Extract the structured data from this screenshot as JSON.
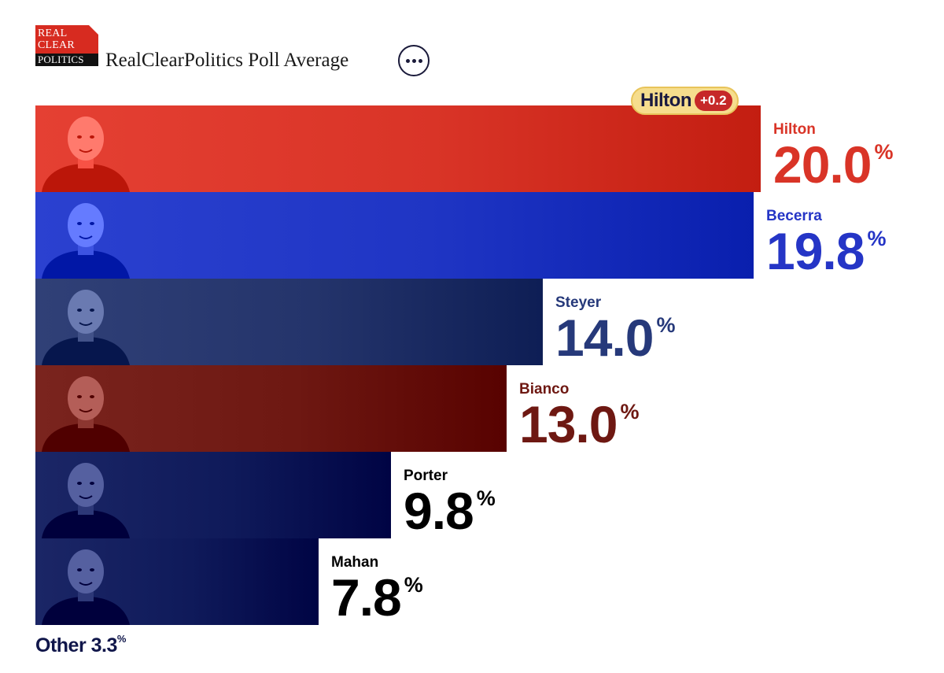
{
  "header": {
    "logo_lines": [
      "REAL",
      "CLEAR",
      "POLITICS"
    ],
    "title": "RealClearPolitics Poll Average",
    "more_icon": "more-horizontal-icon"
  },
  "leader": {
    "name": "Hilton",
    "margin": "+0.2"
  },
  "chart_data": {
    "type": "bar",
    "orientation": "horizontal",
    "title": "RealClearPolitics Poll Average",
    "xlabel": "",
    "ylabel": "",
    "xlim": [
      0,
      20.0
    ],
    "grid": false,
    "categories": [
      "Hilton",
      "Becerra",
      "Steyer",
      "Bianco",
      "Porter",
      "Mahan"
    ],
    "values": [
      20.0,
      19.8,
      14.0,
      13.0,
      9.8,
      7.8
    ],
    "value_labels": [
      "20.0",
      "19.8",
      "14.0",
      "13.0",
      "9.8",
      "7.8"
    ],
    "unit": "%",
    "colors": [
      "#d93427",
      "#1f35c4",
      "#24346b",
      "#6e1812",
      "#0f1a5a",
      "#0f1a5a"
    ],
    "label_colors": [
      "#d93427",
      "#2535c6",
      "#26397a",
      "#6e1812",
      "#000000",
      "#000000"
    ],
    "other": {
      "label": "Other 3.3",
      "unit": "%"
    }
  },
  "colors": {
    "accent": "#d93427",
    "navy": "#10164a",
    "badge": "#f6dd8d"
  }
}
